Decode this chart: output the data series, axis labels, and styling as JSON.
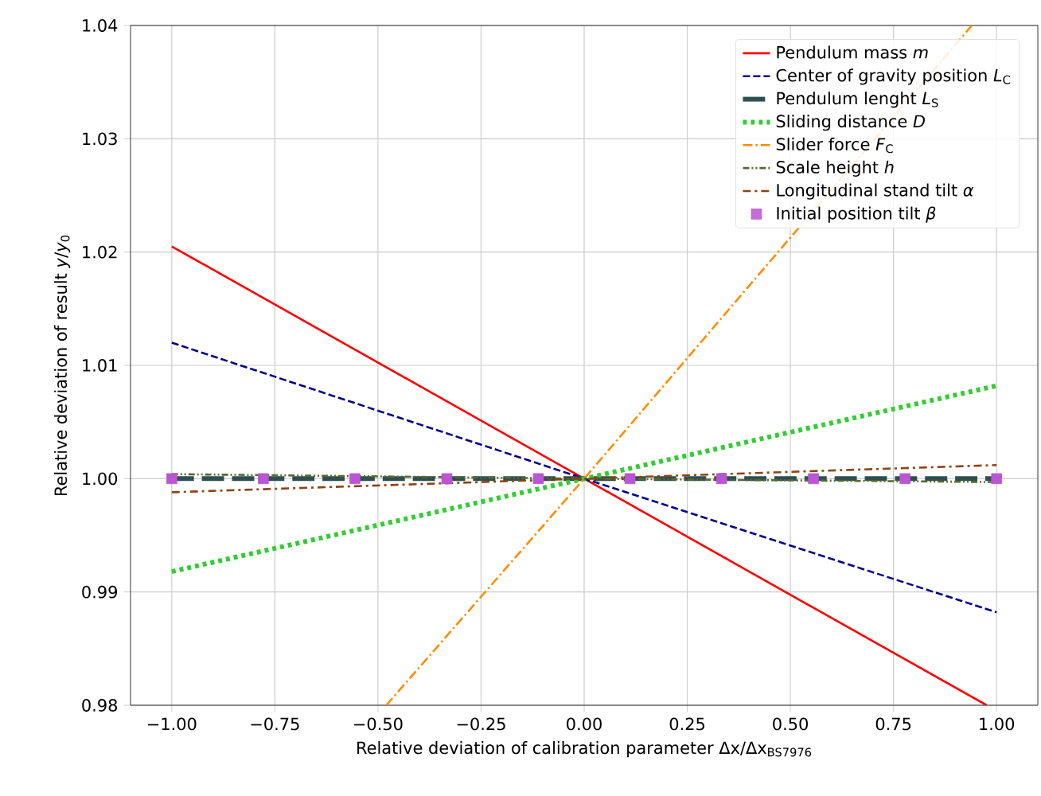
{
  "chart_data": {
    "type": "line",
    "xlabel": "Relative deviation of calibration parameter Δx/Δx$_{BS7976}$",
    "ylabel": "Relative deviation of result *y*/*y*$_{0}$",
    "xlim": [
      -1.1,
      1.1
    ],
    "ylim": [
      0.98,
      1.04
    ],
    "xticks": [
      {
        "value": -1,
        "label": "−1.00"
      },
      {
        "value": -0.75,
        "label": "−0.75"
      },
      {
        "value": -0.5,
        "label": "−0.50"
      },
      {
        "value": -0.25,
        "label": "−0.25"
      },
      {
        "value": 0,
        "label": "0.00"
      },
      {
        "value": 0.25,
        "label": "0.25"
      },
      {
        "value": 0.5,
        "label": "0.50"
      },
      {
        "value": 0.75,
        "label": "0.75"
      },
      {
        "value": 1,
        "label": "1.00"
      }
    ],
    "yticks": [
      {
        "value": 0.98,
        "label": "0.98"
      },
      {
        "value": 0.99,
        "label": "0.99"
      },
      {
        "value": 1.0,
        "label": "1.00"
      },
      {
        "value": 1.01,
        "label": "1.01"
      },
      {
        "value": 1.02,
        "label": "1.02"
      },
      {
        "value": 1.03,
        "label": "1.03"
      },
      {
        "value": 1.04,
        "label": "1.04"
      }
    ],
    "grid": true,
    "legend": "top right",
    "series": [
      {
        "name": "Pendulum mass *m*",
        "color": "#ff0000",
        "line_style": "solid",
        "marker": "none",
        "x": [
          -1,
          0,
          0.976
        ],
        "values": [
          1.0205,
          1.0,
          0.98
        ]
      },
      {
        "name": "Center of gravity position *L*$_{C}$",
        "color": "#00008b",
        "line_style": "dashed",
        "marker": "none",
        "x": [
          -1,
          0,
          1
        ],
        "values": [
          1.012,
          1.0,
          0.9882
        ]
      },
      {
        "name": "Pendulum lenght *L*$_{S}$",
        "color": "#2f4f4f",
        "line_style": "loosely dashed",
        "marker": "none",
        "x": [
          -1,
          0,
          1
        ],
        "values": [
          1.0,
          1.0,
          1.0
        ]
      },
      {
        "name": "Sliding distance *D*",
        "color": "#32cd32",
        "line_style": "dotted",
        "marker": "none",
        "x": [
          -1,
          0,
          1
        ],
        "values": [
          0.9918,
          1.0,
          1.0082
        ]
      },
      {
        "name": "Slider force *F*$_{C}$",
        "color": "#ff8c00",
        "line_style": "dashdot",
        "marker": "none",
        "x": [
          -0.48,
          0,
          0.94
        ],
        "values": [
          0.98,
          1.0,
          1.04
        ]
      },
      {
        "name": "Scale height *h*",
        "color": "#556b2f",
        "line_style": "dashdotdot",
        "marker": "none",
        "x": [
          -1,
          0,
          1
        ],
        "values": [
          1.0004,
          1.0,
          0.9997
        ]
      },
      {
        "name": "Longitudinal stand tilt *α*",
        "color": "#8b4513",
        "line_style": "loosely dashdot",
        "marker": "none",
        "x": [
          -1,
          0,
          1
        ],
        "values": [
          0.9988,
          1.0,
          1.0012
        ]
      },
      {
        "name": "Initial position tilt *β*",
        "color": "#ba55d3",
        "type": "scatter",
        "marker": "square",
        "x": [
          -1,
          -0.778,
          -0.556,
          -0.333,
          -0.111,
          0.111,
          0.333,
          0.556,
          0.778,
          1
        ],
        "values": [
          1.0,
          1.0,
          1.0,
          1.0,
          1.0,
          1.0,
          1.0,
          1.0,
          1.0,
          1.0
        ]
      }
    ]
  }
}
